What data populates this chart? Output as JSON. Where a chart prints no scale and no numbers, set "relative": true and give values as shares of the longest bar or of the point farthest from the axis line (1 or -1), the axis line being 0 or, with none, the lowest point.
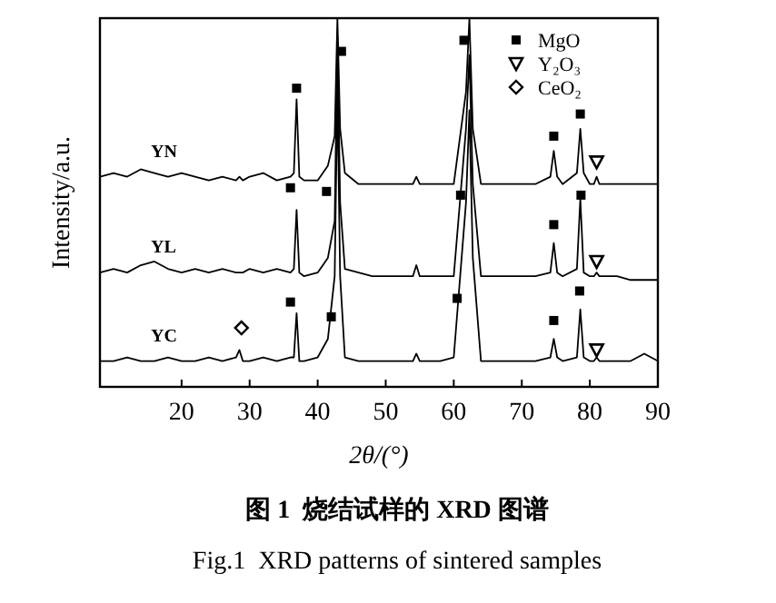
{
  "chart_data": {
    "type": "line",
    "title": "图 1  烧结试样的 XRD 图谱",
    "subtitle": "Fig.1  XRD patterns of sintered samples",
    "xlabel": "2θ/(°)",
    "ylabel": "Intensity/a.u.",
    "relative": true,
    "xlim": [
      8,
      90
    ],
    "xticks": [
      20,
      30,
      40,
      50,
      60,
      70,
      80,
      90
    ],
    "legend": "top right",
    "x": [
      8,
      10,
      12,
      14,
      16,
      18,
      20,
      22,
      24,
      26,
      28,
      28.5,
      29,
      30,
      32,
      34,
      36,
      36.5,
      36.9,
      37.3,
      38,
      40,
      41.5,
      42.5,
      42.9,
      43.3,
      44,
      46,
      48,
      50,
      52,
      54,
      54.5,
      55,
      56,
      58,
      60,
      61.8,
      62.3,
      62.8,
      64,
      66,
      68,
      70,
      72,
      74.2,
      74.7,
      75.2,
      76,
      78.1,
      78.6,
      79.1,
      80,
      80.6,
      81,
      81.4,
      82,
      84,
      86,
      88,
      90
    ],
    "series": [
      {
        "name": "YN",
        "color": "#000000",
        "values": [
          0.57,
          0.58,
          0.57,
          0.59,
          0.58,
          0.57,
          0.58,
          0.57,
          0.56,
          0.57,
          0.56,
          0.57,
          0.56,
          0.57,
          0.58,
          0.56,
          0.57,
          0.58,
          0.78,
          0.57,
          0.56,
          0.56,
          0.6,
          0.68,
          1,
          0.7,
          0.58,
          0.55,
          0.55,
          0.55,
          0.55,
          0.55,
          0.57,
          0.55,
          0.55,
          0.55,
          0.55,
          0.8,
          1,
          0.7,
          0.55,
          0.55,
          0.55,
          0.55,
          0.55,
          0.57,
          0.64,
          0.57,
          0.55,
          0.58,
          0.7,
          0.58,
          0.55,
          0.55,
          0.57,
          0.55,
          0.55,
          0.55,
          0.55,
          0.55,
          0.55
        ]
      },
      {
        "name": "YL",
        "color": "#000000",
        "values": [
          0.31,
          0.32,
          0.31,
          0.33,
          0.34,
          0.32,
          0.31,
          0.32,
          0.31,
          0.32,
          0.31,
          0.31,
          0.31,
          0.32,
          0.31,
          0.32,
          0.31,
          0.32,
          0.48,
          0.31,
          0.3,
          0.31,
          0.35,
          0.45,
          0.95,
          0.5,
          0.32,
          0.31,
          0.3,
          0.3,
          0.3,
          0.3,
          0.33,
          0.3,
          0.3,
          0.3,
          0.3,
          0.7,
          0.9,
          0.55,
          0.3,
          0.3,
          0.3,
          0.3,
          0.3,
          0.31,
          0.39,
          0.31,
          0.3,
          0.32,
          0.51,
          0.31,
          0.3,
          0.3,
          0.31,
          0.3,
          0.3,
          0.3,
          0.29,
          0.29,
          0.29
        ]
      },
      {
        "name": "YC",
        "color": "#000000",
        "values": [
          0.07,
          0.07,
          0.08,
          0.07,
          0.07,
          0.08,
          0.07,
          0.07,
          0.08,
          0.07,
          0.08,
          0.1,
          0.07,
          0.07,
          0.08,
          0.07,
          0.08,
          0.08,
          0.2,
          0.07,
          0.07,
          0.08,
          0.13,
          0.3,
          0.8,
          0.3,
          0.08,
          0.07,
          0.07,
          0.07,
          0.07,
          0.07,
          0.09,
          0.07,
          0.07,
          0.07,
          0.08,
          0.5,
          0.75,
          0.35,
          0.07,
          0.07,
          0.07,
          0.07,
          0.07,
          0.08,
          0.13,
          0.08,
          0.07,
          0.08,
          0.21,
          0.08,
          0.07,
          0.07,
          0.08,
          0.07,
          0.07,
          0.07,
          0.07,
          0.09,
          0.07
        ]
      },
      {
        "name": "MgO",
        "type": "scatter",
        "marker": "square",
        "color": "#000000",
        "x": [
          36.9,
          43.5,
          61.5,
          74.7,
          78.6,
          36,
          41.3,
          61,
          74.7,
          78.7,
          36,
          42,
          60.5,
          74.7,
          78.5
        ],
        "values": [
          0.81,
          0.91,
          0.94,
          0.68,
          0.74,
          0.54,
          0.53,
          0.52,
          0.44,
          0.52,
          0.23,
          0.19,
          0.24,
          0.18,
          0.26
        ]
      },
      {
        "name": "Y₂O₃",
        "type": "scatter",
        "marker": "triangle",
        "color": "#000000",
        "x": [
          81,
          81,
          81
        ],
        "values": [
          0.61,
          0.34,
          0.1
        ]
      },
      {
        "name": "CeO₂",
        "type": "scatter",
        "marker": "diamond",
        "color": "#000000",
        "x": [
          28.8
        ],
        "values": [
          0.16
        ]
      }
    ]
  }
}
